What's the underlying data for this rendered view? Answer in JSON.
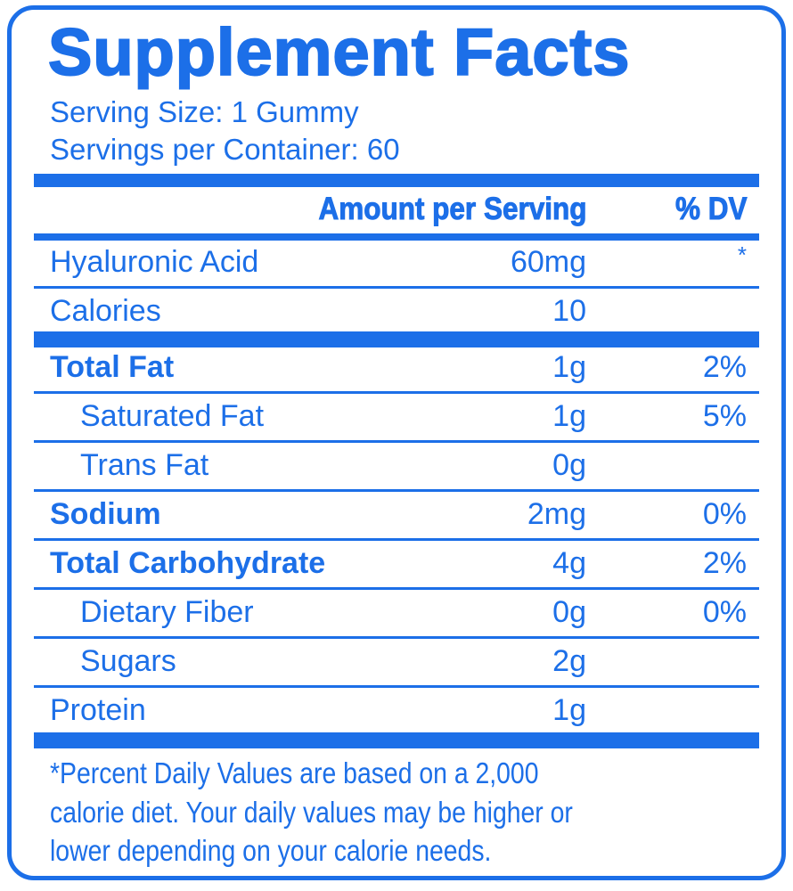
{
  "header": {
    "title": "Supplement Facts",
    "serving_size": "Serving Size: 1 Gummy",
    "servings_per_container": "Servings per Container: 60"
  },
  "table": {
    "columns": [
      "Amount per Serving",
      "% DV"
    ],
    "rows": [
      [
        "Hyaluronic Acid",
        "60mg",
        "*"
      ],
      [
        "Calories",
        "10"
      ],
      [
        "Total Fat",
        "1g",
        "2%"
      ],
      [
        "Saturated Fat",
        "1g",
        "5%"
      ],
      [
        "Trans Fat",
        "0g"
      ],
      [
        "Sodium",
        "2mg",
        "0%"
      ],
      [
        "Total Carbohydrate",
        "4g",
        "2%"
      ],
      [
        "Dietary Fiber",
        "0g",
        "0%"
      ],
      [
        "Sugars",
        "2g"
      ],
      [
        "Protein",
        "1g"
      ]
    ]
  },
  "footnote": [
    "*Percent Daily Values are based on a 2,000",
    "calorie diet. Your daily values may be higher or",
    "lower depending on your calorie needs."
  ]
}
